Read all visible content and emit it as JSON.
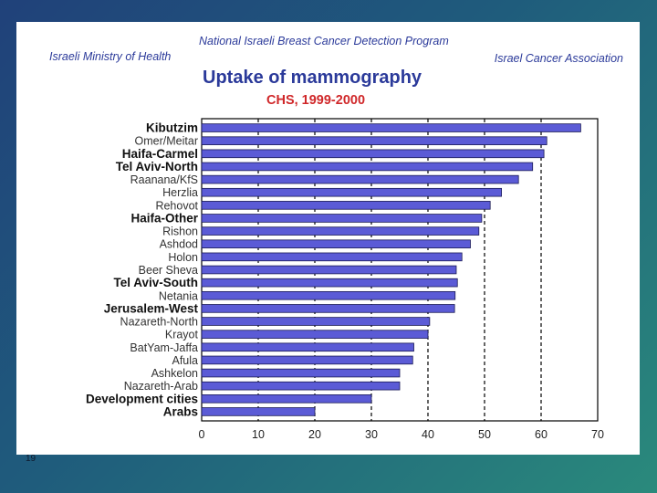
{
  "header": {
    "program": "National Israeli Breast Cancer Detection Program",
    "ministry": "Israeli Ministry of Health",
    "association": "Israel Cancer Association"
  },
  "slide_number": "19",
  "colors": {
    "bar": "#5b5bd6",
    "title": "#2b3a9a",
    "subtitle": "#d0282a",
    "background": "#20417a"
  },
  "chart_data": {
    "type": "bar",
    "orientation": "horizontal",
    "title": "Uptake of mammography",
    "subtitle": "CHS, 1999-2000",
    "xlabel": "",
    "ylabel": "",
    "xlim": [
      0,
      70
    ],
    "xticks": [
      0,
      10,
      20,
      30,
      40,
      50,
      60,
      70
    ],
    "grid": "vertical dashed",
    "categories": [
      "Kibutzim",
      "Omer/Meitar",
      "Haifa-Carmel",
      "Tel Aviv-North",
      "Raanana/KfS",
      "Herzlia",
      "Rehovot",
      "Haifa-Other",
      "Rishon",
      "Ashdod",
      "Holon",
      "Beer Sheva",
      "Tel Aviv-South",
      "Netania",
      "Jerusalem-West",
      "Nazareth-North",
      "Krayot",
      "BatYam-Jaffa",
      "Afula",
      "Ashkelon",
      "Nazareth-Arab",
      "Development cities",
      "Arabs"
    ],
    "bold": [
      true,
      false,
      true,
      true,
      false,
      false,
      false,
      true,
      false,
      false,
      false,
      false,
      true,
      false,
      true,
      false,
      false,
      false,
      false,
      false,
      false,
      true,
      true
    ],
    "values": [
      67,
      61,
      60.5,
      58.5,
      56,
      53,
      51,
      49.5,
      49,
      47.5,
      46,
      45,
      45.2,
      44.8,
      44.7,
      40.3,
      40,
      37.5,
      37.3,
      35,
      35,
      30,
      20
    ]
  }
}
